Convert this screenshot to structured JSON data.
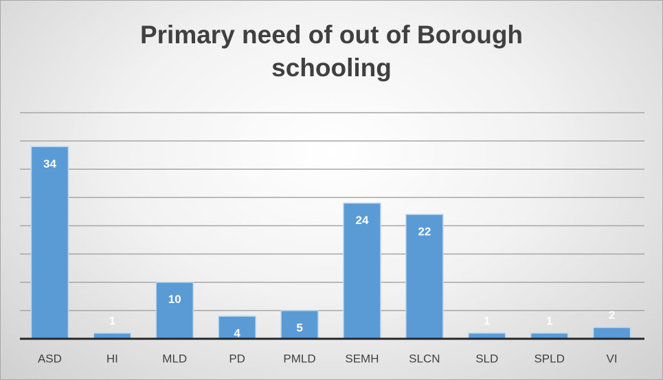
{
  "chart_data": {
    "type": "bar",
    "title": "Primary need of out of Borough schooling",
    "categories": [
      "ASD",
      "HI",
      "MLD",
      "PD",
      "PMLD",
      "SEMH",
      "SLCN",
      "SLD",
      "SPLD",
      "VI"
    ],
    "values": [
      34,
      1,
      10,
      4,
      5,
      24,
      22,
      1,
      1,
      2
    ],
    "color": "#5b9bd5",
    "ylim": [
      0,
      40
    ],
    "yticks": [
      0,
      5,
      10,
      15,
      20,
      25,
      30,
      35,
      40
    ],
    "grid": true
  }
}
